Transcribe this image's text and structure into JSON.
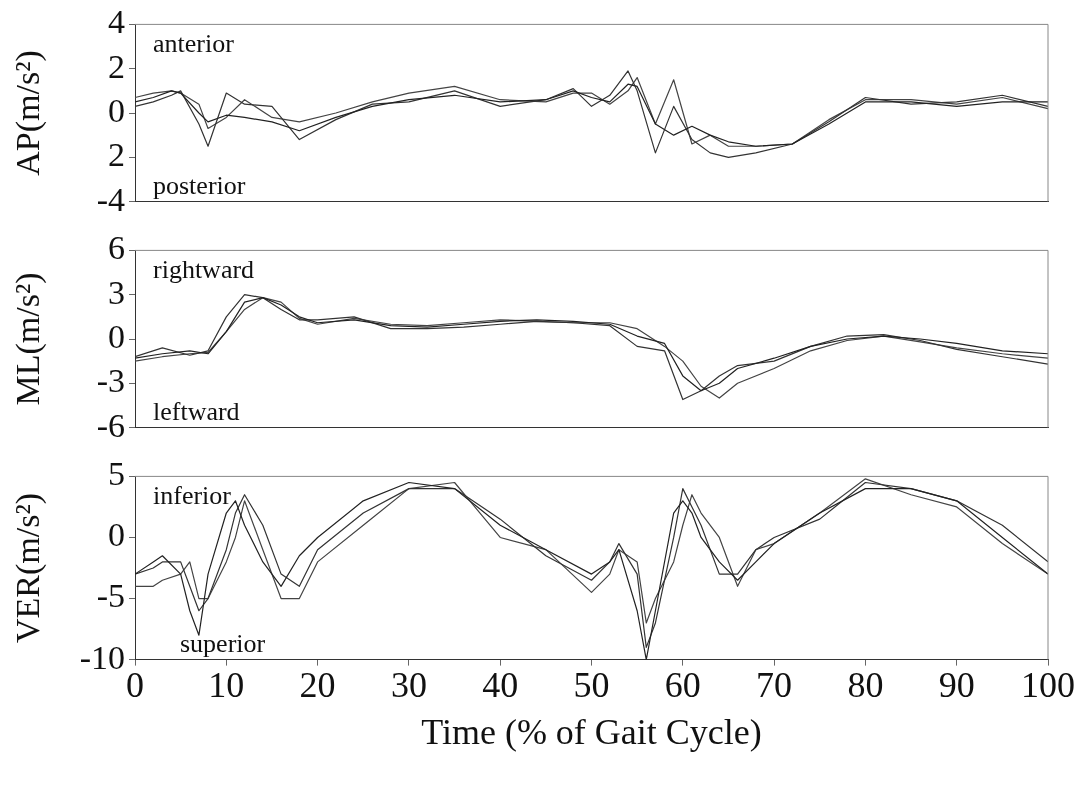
{
  "chart_data": [
    {
      "type": "line",
      "ylabel": "AP(m/s²)",
      "xlim": [
        0,
        100
      ],
      "xticks": [
        0,
        10,
        20,
        30,
        40,
        50,
        60,
        70,
        80,
        90,
        100
      ],
      "ylim": [
        -4,
        4
      ],
      "yticks": [
        -4,
        {
          "value": -2,
          "label": "2"
        },
        0,
        2,
        4
      ],
      "tick_labels": "y",
      "grid": false,
      "legend": false,
      "marker": "none",
      "line_style": "solid",
      "annotations": [
        "anterior",
        "posterior"
      ],
      "x": [
        0,
        2,
        4,
        5,
        7,
        8,
        10,
        12,
        15,
        18,
        22,
        26,
        30,
        35,
        40,
        45,
        48,
        50,
        52,
        54,
        55,
        57,
        59,
        61,
        63,
        65,
        68,
        72,
        76,
        80,
        85,
        90,
        95,
        100
      ],
      "series": [
        {
          "color": "#222222",
          "values": [
            0.5,
            0.7,
            1.0,
            0.9,
            0,
            -0.4,
            -0.1,
            -0.2,
            -0.4,
            -0.8,
            -0.2,
            0.3,
            0.6,
            0.8,
            0.5,
            0.6,
            1.0,
            0.7,
            0.5,
            1.3,
            1.2,
            -0.5,
            -1.0,
            -0.6,
            -1.0,
            -1.3,
            -1.5,
            -1.4,
            -0.5,
            0.5,
            0.5,
            0.3,
            0.5,
            0.5
          ]
        },
        {
          "color": "#333333",
          "values": [
            0.3,
            0.5,
            0.8,
            1.0,
            -0.5,
            -1.5,
            0.9,
            0.4,
            0.3,
            -1.2,
            -0.3,
            0.4,
            0.5,
            1.0,
            0.3,
            0.6,
            1.1,
            0.3,
            0.8,
            1.9,
            1.0,
            -1.8,
            0.3,
            -1.2,
            -1.8,
            -2.0,
            -1.8,
            -1.4,
            -0.4,
            0.7,
            0.4,
            0.5,
            0.8,
            0.3
          ]
        },
        {
          "color": "#444444",
          "values": [
            0.7,
            0.9,
            1.0,
            0.9,
            0.4,
            -0.7,
            -0.2,
            0.6,
            -0.2,
            -0.4,
            0,
            0.5,
            0.9,
            1.2,
            0.6,
            0.5,
            0.9,
            0.9,
            0.4,
            1.0,
            1.6,
            -0.5,
            1.5,
            -1.4,
            -1.0,
            -1.5,
            -1.5,
            -1.4,
            -0.3,
            0.6,
            0.6,
            0.4,
            0.7,
            0.2
          ]
        }
      ]
    },
    {
      "type": "line",
      "ylabel": "ML(m/s²)",
      "xlim": [
        0,
        100
      ],
      "xticks": [
        0,
        10,
        20,
        30,
        40,
        50,
        60,
        70,
        80,
        90,
        100
      ],
      "ylim": [
        -6,
        6
      ],
      "yticks": [
        -6,
        -3,
        0,
        3,
        6
      ],
      "tick_labels": "y",
      "grid": false,
      "legend": false,
      "marker": "none",
      "line_style": "solid",
      "annotations": [
        "rightward",
        "leftward"
      ],
      "x": [
        0,
        3,
        6,
        8,
        10,
        12,
        14,
        16,
        18,
        20,
        24,
        28,
        32,
        36,
        40,
        44,
        48,
        52,
        55,
        58,
        60,
        62,
        64,
        66,
        70,
        74,
        78,
        82,
        86,
        90,
        95,
        100
      ],
      "series": [
        {
          "color": "#222222",
          "values": [
            -1.3,
            -1.0,
            -0.8,
            -1.0,
            0.5,
            2.5,
            2.8,
            2.3,
            1.5,
            1.1,
            1.3,
            0.9,
            0.8,
            1.0,
            1.2,
            1.3,
            1.2,
            1.0,
            0.2,
            -0.3,
            -2.5,
            -3.5,
            -3.0,
            -2.0,
            -1.3,
            -0.5,
            0,
            0.2,
            0,
            -0.3,
            -0.8,
            -1.0
          ]
        },
        {
          "color": "#333333",
          "values": [
            -1.2,
            -0.6,
            -1.1,
            -0.8,
            1.5,
            3.0,
            2.8,
            2.0,
            1.3,
            1.3,
            1.5,
            0.7,
            0.7,
            0.8,
            1.0,
            1.2,
            1.1,
            0.9,
            -0.5,
            -0.8,
            -4.1,
            -3.5,
            -2.5,
            -1.8,
            -1.5,
            -0.5,
            0.2,
            0.3,
            -0.1,
            -0.7,
            -1.2,
            -1.7
          ]
        },
        {
          "color": "#444444",
          "values": [
            -1.5,
            -1.2,
            -1.0,
            -0.9,
            0.5,
            2.0,
            2.8,
            2.5,
            1.4,
            1.0,
            1.4,
            1.0,
            0.9,
            1.1,
            1.3,
            1.2,
            1.1,
            1.1,
            0.7,
            -0.5,
            -1.5,
            -3.2,
            -4.0,
            -3.0,
            -2.0,
            -0.8,
            -0.1,
            0.2,
            -0.2,
            -0.6,
            -1.0,
            -1.3
          ]
        }
      ]
    },
    {
      "type": "line",
      "xlabel": "Time (% of Gait Cycle)",
      "ylabel": "VER(m/s²)",
      "xlim": [
        0,
        100
      ],
      "xticks": [
        0,
        10,
        20,
        30,
        40,
        50,
        60,
        70,
        80,
        90,
        100
      ],
      "ylim": [
        -10,
        5
      ],
      "yticks": [
        -10,
        -5,
        0,
        5
      ],
      "grid": false,
      "legend": false,
      "marker": "none",
      "line_style": "solid",
      "annotations": [
        "inferior",
        "superior"
      ],
      "x": [
        0,
        2,
        3,
        5,
        6,
        7,
        8,
        10,
        11,
        12,
        14,
        16,
        18,
        20,
        25,
        30,
        35,
        40,
        45,
        50,
        52,
        53,
        55,
        56,
        57,
        59,
        60,
        61,
        62,
        64,
        66,
        68,
        70,
        75,
        80,
        85,
        90,
        95,
        100
      ],
      "series": [
        {
          "color": "#222222",
          "values": [
            -3,
            -2,
            -1.5,
            -3,
            -6,
            -8,
            -3,
            2,
            3,
            1,
            -2,
            -4,
            -1.5,
            0,
            3,
            4.5,
            4,
            1,
            -1,
            -3,
            -2,
            -1,
            -6,
            -10,
            -6,
            2,
            3,
            2,
            0,
            -2,
            -3.5,
            -2,
            -0.5,
            2,
            4,
            4,
            3,
            0,
            -3
          ]
        },
        {
          "color": "#333333",
          "values": [
            -3,
            -2.5,
            -2,
            -2,
            -4,
            -6,
            -5,
            -1,
            2,
            3.5,
            1,
            -3,
            -4,
            -1,
            2,
            4,
            4,
            1.5,
            -1.5,
            -3.5,
            -2,
            -0.5,
            -3,
            -9,
            -7,
            0,
            4,
            2.5,
            1,
            -3,
            -3,
            -1,
            0,
            1.5,
            4.5,
            4,
            3,
            1,
            -2
          ]
        },
        {
          "color": "#444444",
          "values": [
            -4,
            -4,
            -3.5,
            -3,
            -2,
            -5,
            -5,
            -2,
            0,
            3,
            -1,
            -5,
            -5,
            -2,
            1,
            4,
            4.5,
            0,
            -1,
            -4.5,
            -3,
            -1,
            -2,
            -7,
            -5,
            -2,
            1,
            3.5,
            2,
            0,
            -4,
            -1,
            -0.5,
            2,
            4.8,
            3.5,
            2.5,
            -0.5,
            -3
          ]
        }
      ]
    }
  ]
}
